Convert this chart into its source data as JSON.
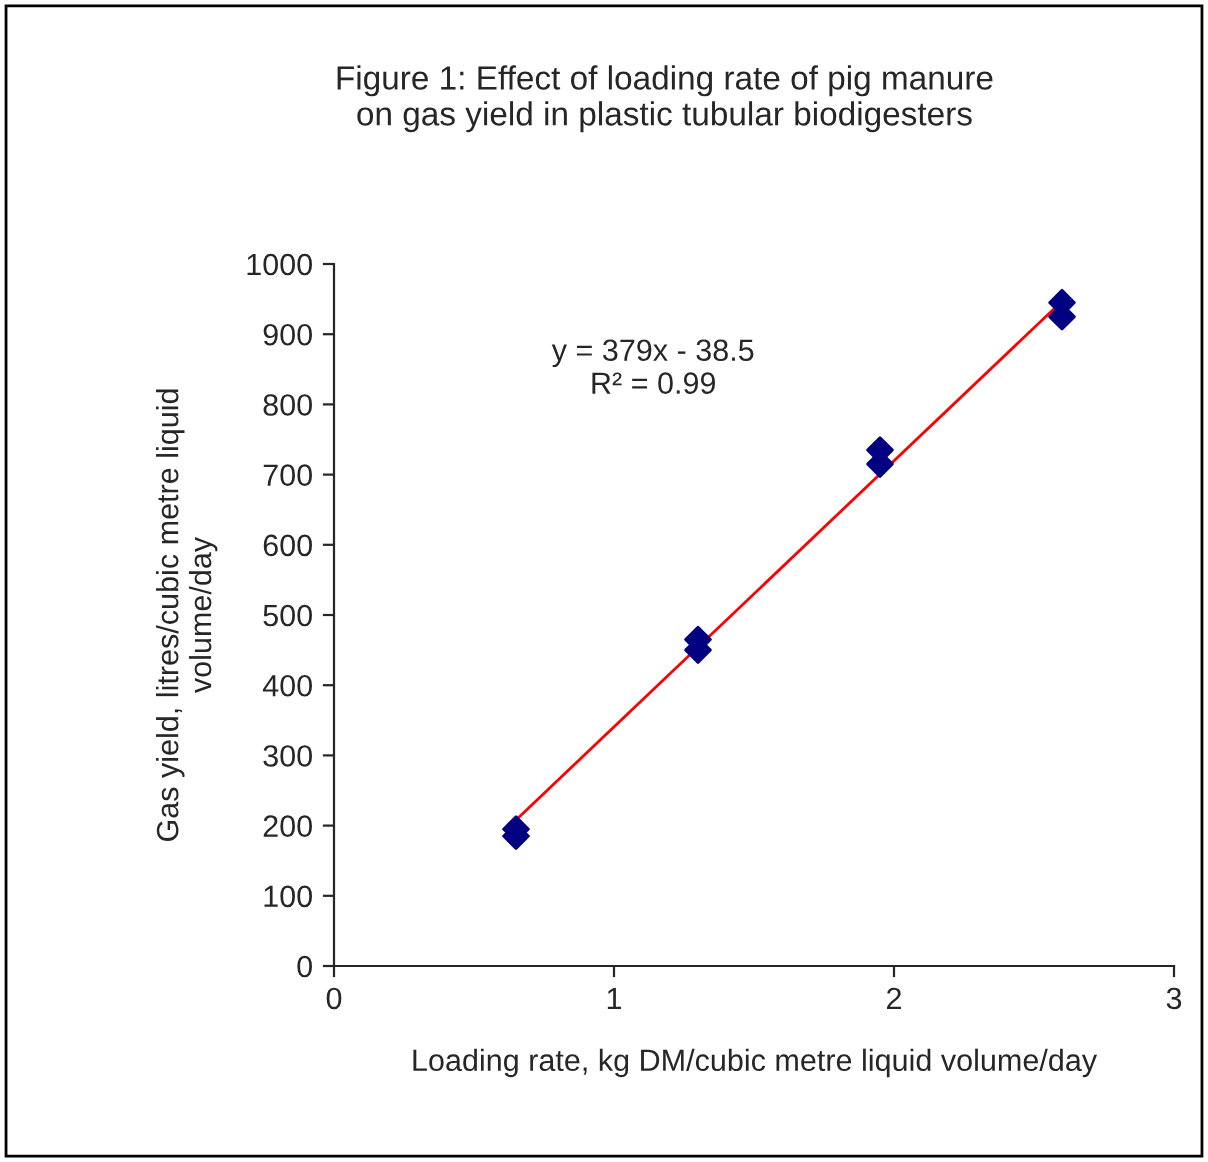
{
  "chart_data": {
    "type": "scatter",
    "title": "Figure 1: Effect of loading rate of pig manure\non gas yield in plastic tubular biodigesters",
    "xlabel": "Loading rate, kg DM/cubic metre liquid volume/day",
    "ylabel": "Gas yield, litres/cubic metre liquid\nvolume/day",
    "series": [
      {
        "color": "#000080",
        "marker": "diamond",
        "x": [
          0.65,
          0.65,
          1.3,
          1.3,
          1.95,
          1.95,
          2.6,
          2.6
        ],
        "values": [
          195,
          185,
          465,
          450,
          735,
          715,
          945,
          925
        ]
      },
      {
        "type": "line",
        "color": "#ff0000",
        "line_style": "solid",
        "marker": "none",
        "x": [
          0.65,
          2.6
        ],
        "values": [
          208,
          947
        ]
      }
    ],
    "annotations": [
      "y = 379x - 38.5\nR² = 0.99"
    ],
    "xlim": [
      0,
      3
    ],
    "xticks": [
      0,
      1,
      2,
      3
    ],
    "ylim": [
      0,
      1000
    ],
    "yticks": [
      0,
      100,
      200,
      300,
      400,
      500,
      600,
      700,
      800,
      900,
      1000
    ],
    "grid": false,
    "legend": false
  }
}
